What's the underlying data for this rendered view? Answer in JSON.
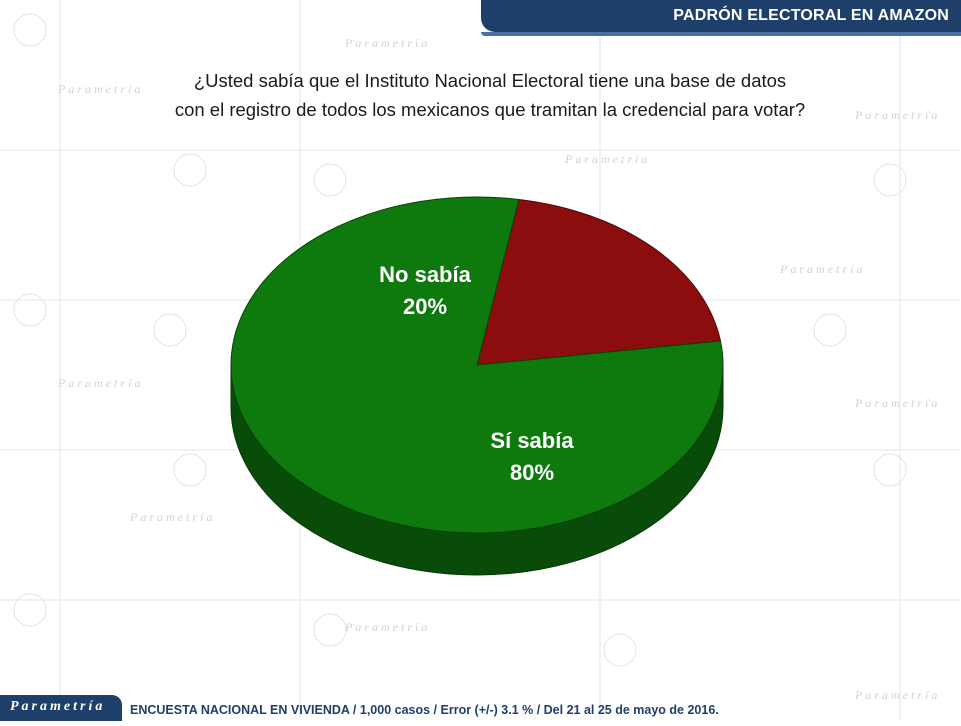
{
  "header": {
    "title": "PADRÓN ELECTORAL EN AMAZON"
  },
  "question": {
    "line1": "¿Usted sabía que el Instituto Nacional Electoral tiene una base de datos",
    "line2": "con el registro de todos los mexicanos que tramitan la credencial para votar?"
  },
  "chart_data": {
    "type": "pie",
    "slices": [
      {
        "name": "Sí sabía",
        "value": 80,
        "label": "80%",
        "color": "#0e7a0e"
      },
      {
        "name": "No sabía",
        "value": 20,
        "label": "20%",
        "color": "#8b0d0d"
      }
    ]
  },
  "footer": {
    "logo": "Parametría",
    "note": "ENCUESTA NACIONAL EN VIVIENDA / 1,000 casos / Error (+/-) 3.1 % / Del 21 al 25 de mayo de 2016."
  },
  "watermark": {
    "word": "Parametría"
  }
}
